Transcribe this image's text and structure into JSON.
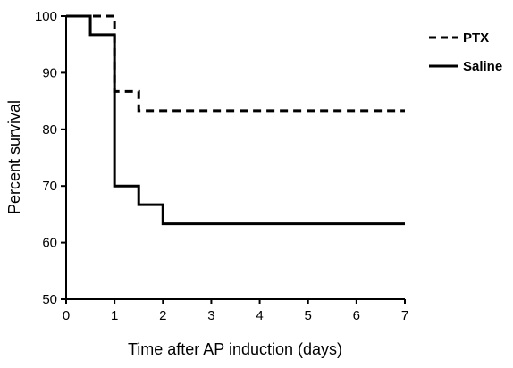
{
  "chart_data": {
    "type": "line",
    "chart_style": "step (Kaplan-Meier survival curve)",
    "title": "",
    "xlabel": "Time after AP induction (days)",
    "ylabel": "Percent survival",
    "xlim": [
      0,
      7
    ],
    "ylim": [
      50,
      100
    ],
    "x_ticks": [
      0,
      1,
      2,
      3,
      4,
      5,
      6,
      7
    ],
    "y_ticks": [
      50,
      60,
      70,
      80,
      90,
      100
    ],
    "grid": false,
    "legend_position": "top-right",
    "series": [
      {
        "name": "PTX",
        "line_style": "dashed",
        "color": "#000000",
        "x": [
          0,
          1.0,
          1.5,
          7.0
        ],
        "y": [
          100,
          86.7,
          83.3,
          83.3
        ]
      },
      {
        "name": "Saline",
        "line_style": "solid",
        "color": "#000000",
        "x": [
          0,
          0.5,
          1.0,
          1.5,
          2.0,
          7.0
        ],
        "y": [
          100,
          96.7,
          70.0,
          66.7,
          63.3,
          63.3
        ]
      }
    ]
  }
}
